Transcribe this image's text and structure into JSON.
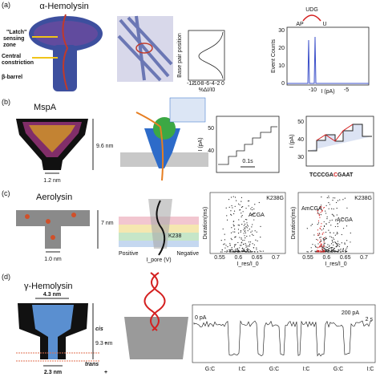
{
  "panels": {
    "a": {
      "label": "(a)",
      "title": "α-Hemolysin",
      "annotations": {
        "latch": [
          "\"Latch\"",
          "sensing",
          "zone"
        ],
        "constriction": [
          "Central",
          "constriction"
        ],
        "barrel": "β-barrel"
      },
      "profile": {
        "ylabel": "Base pair position",
        "xlabel": "%ΔI/I0",
        "xticks": [
          0,
          -2,
          -4,
          -6,
          -8,
          -10,
          -12
        ]
      },
      "histogram": {
        "labels": [
          "UDG",
          "AP",
          "U"
        ],
        "ylabel": "Event Counts",
        "xlabel": "I (pA)",
        "yticks": [
          0,
          10,
          20,
          30
        ],
        "xticks": [
          -10,
          -5
        ]
      }
    },
    "b": {
      "label": "(b)",
      "title": "MspA",
      "height": "9.6 nm",
      "constriction": "1.2 nm",
      "trace1": {
        "ylabel": "I (pA)",
        "yticks": [
          40,
          50
        ],
        "scale": "0.1s"
      },
      "trace2": {
        "ylabel": "I (pA)",
        "yticks": [
          30,
          40,
          50
        ],
        "sequence": [
          "TCCCGA",
          "C",
          "GAAT"
        ]
      }
    },
    "c": {
      "label": "(c)",
      "title": "Aerolysin",
      "height": "7 nm",
      "constriction": "1.0 nm",
      "scheme": {
        "residue": "K238",
        "left": "Positive",
        "right": "Negative",
        "axis": "I_pore (V)"
      },
      "scatter1": {
        "mutant": "K238G",
        "cluster": "ACGA",
        "ylabel": "Duration(ms)",
        "xlabel": "I_res/I_0",
        "xticks": [
          0.55,
          0.6,
          0.65,
          0.7
        ]
      },
      "scatter2": {
        "mutant": "K238G",
        "clusters": [
          "AmCGA",
          "ACGA"
        ],
        "ylabel": "Duration(ms)",
        "xlabel": "I_res/I_0",
        "xticks": [
          0.55,
          0.6,
          0.65,
          0.7
        ]
      }
    },
    "d": {
      "label": "(d)",
      "title": "γ-Hemolysin",
      "width": "4.3 nm",
      "height": "9.3 nm",
      "constriction": "2.3 nm",
      "cis": "cis",
      "trans": "trans",
      "trace": {
        "baseline": "0 pA",
        "current_scale": "200 pA",
        "time_scale": "2 s",
        "bases": [
          {
            "text": "G:C",
            "color": "#2343c4"
          },
          {
            "text": "I:C",
            "color": "#d42020"
          },
          {
            "text": "G:C",
            "color": "#2343c4"
          },
          {
            "text": "I:C",
            "color": "#d42020"
          },
          {
            "text": "G:C",
            "color": "#2343c4"
          },
          {
            "text": "I:C",
            "color": "#d42020"
          }
        ]
      }
    }
  }
}
